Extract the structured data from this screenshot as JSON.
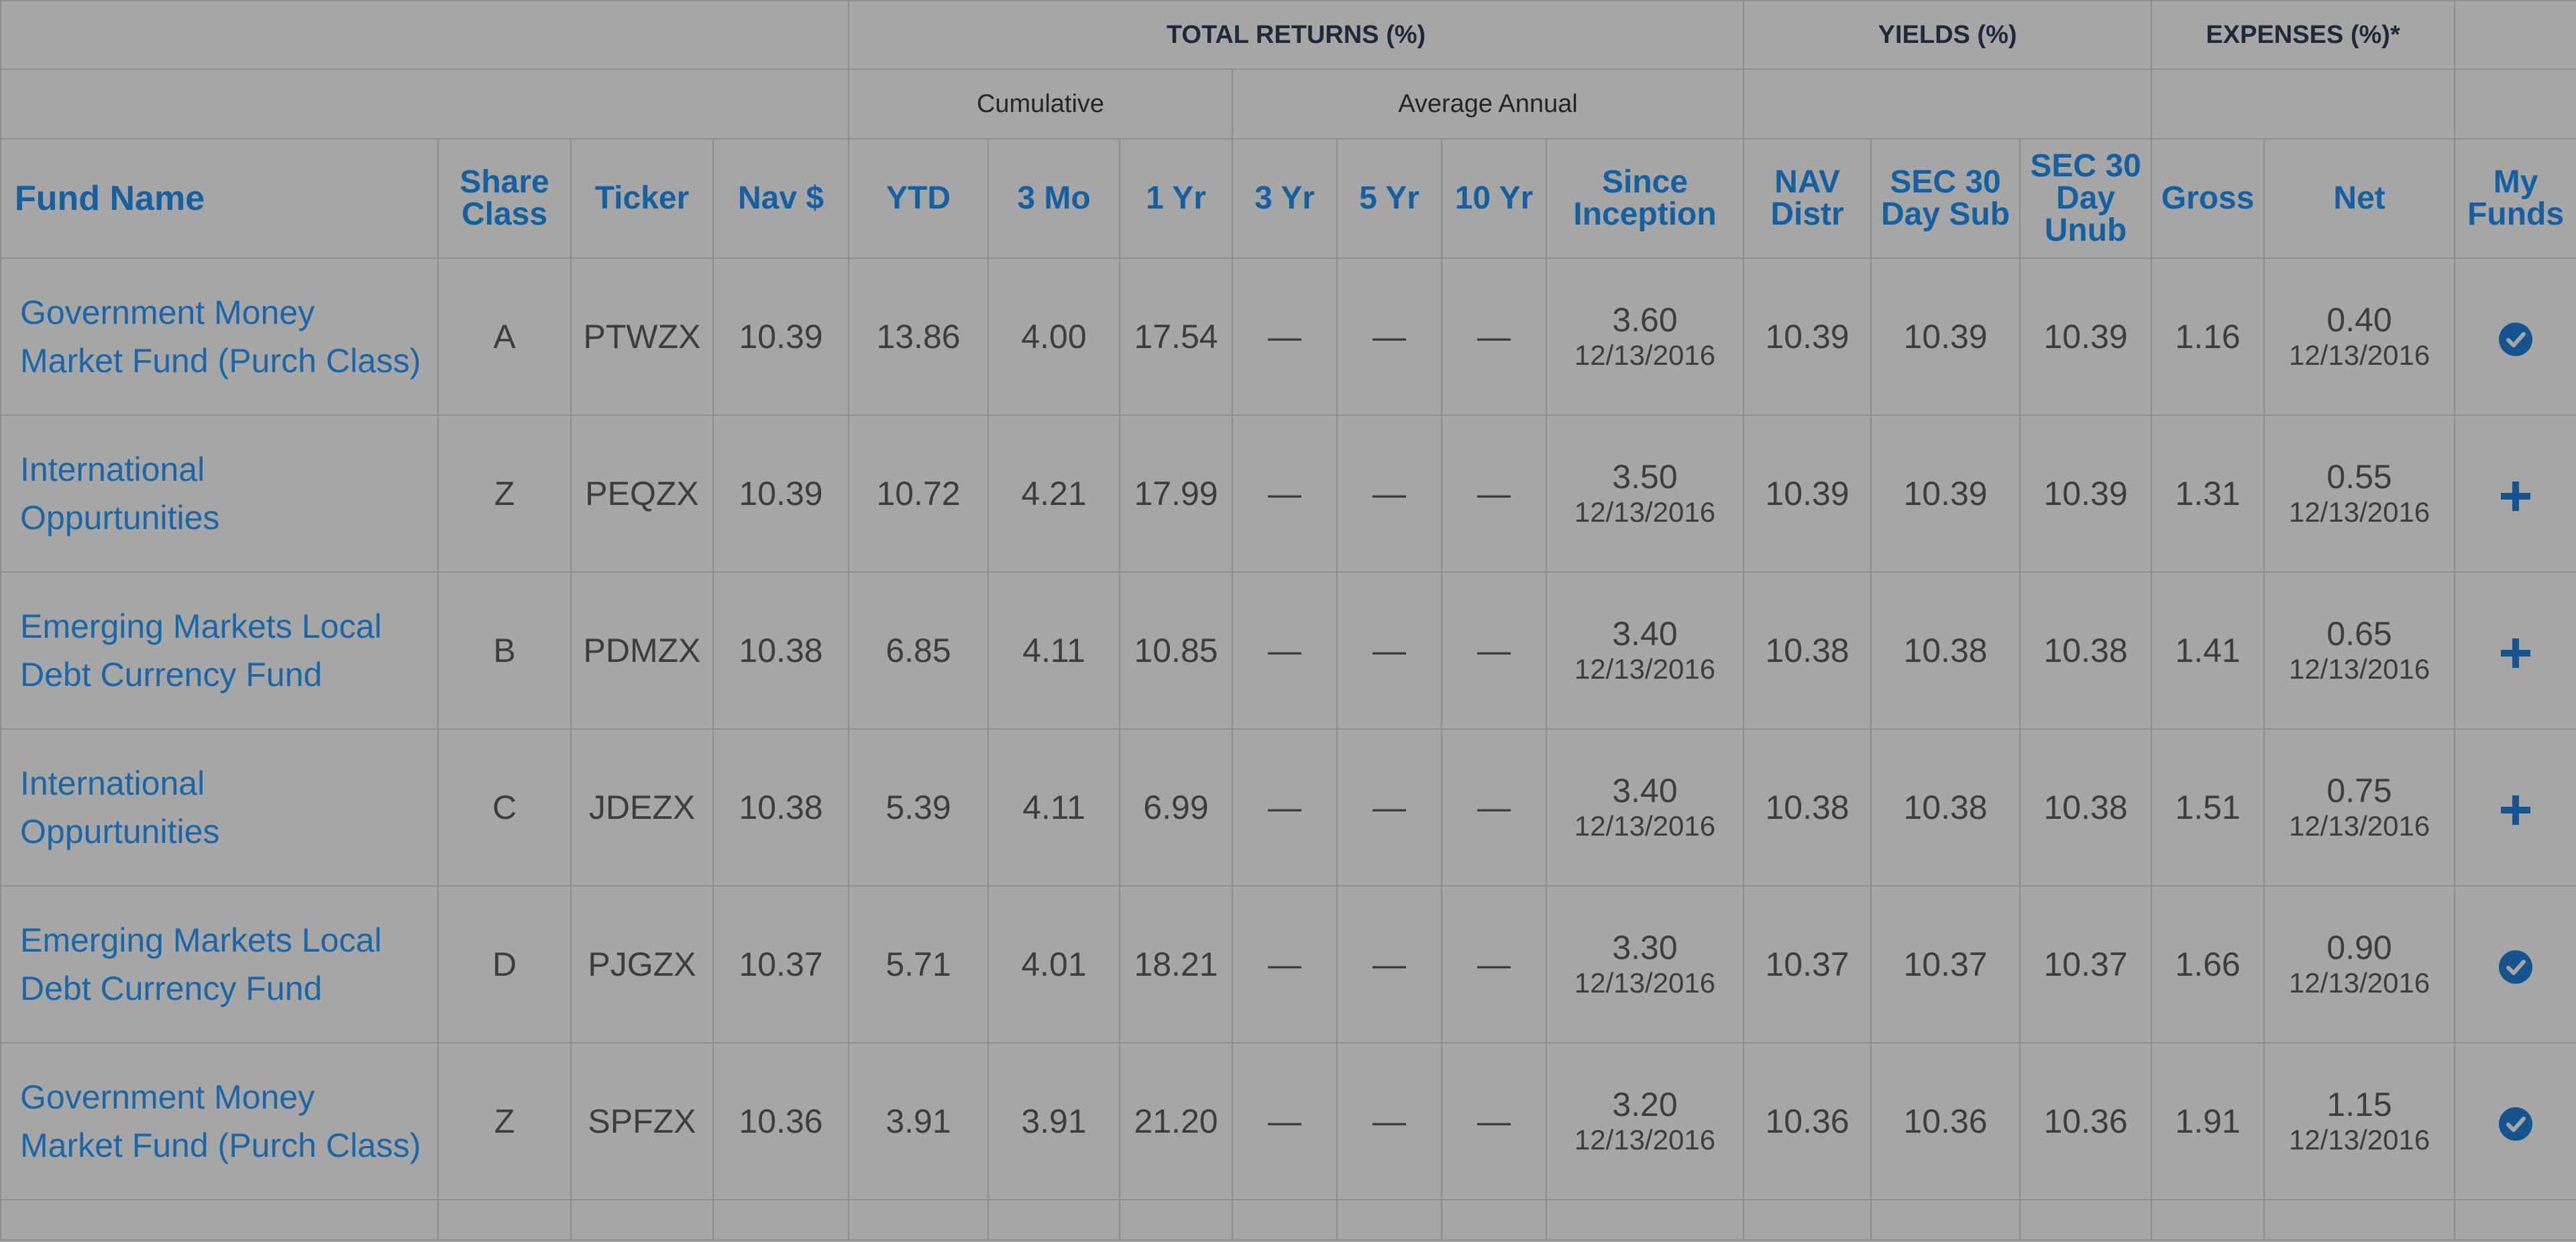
{
  "header": {
    "groups": {
      "total_returns": "TOTAL RETURNS (%)",
      "yields": "YIELDS (%)",
      "expenses": "EXPENSES (%)*"
    },
    "subgroups": {
      "cumulative": "Cumulative",
      "average_annual": "Average Annual"
    },
    "columns": {
      "fund_name": "Fund Name",
      "share_class_1": "Share",
      "share_class_2": "Class",
      "ticker": "Ticker",
      "nav": "Nav $",
      "ytd": "YTD",
      "three_mo": "3 Mo",
      "one_yr": "1 Yr",
      "three_yr": "3 Yr",
      "five_yr": "5 Yr",
      "ten_yr": "10 Yr",
      "since_inception_1": "Since",
      "since_inception_2": "Inception",
      "nav_distr_1": "NAV",
      "nav_distr_2": "Distr",
      "sec_sub_1": "SEC 30",
      "sec_sub_2": "Day Sub",
      "sec_unub_1": "SEC 30",
      "sec_unub_2": "Day",
      "sec_unub_3": "Unub",
      "gross": "Gross",
      "net": "Net",
      "my_funds_1": "My",
      "my_funds_2": "Funds"
    }
  },
  "rows": [
    {
      "name_line1": "Government Money",
      "name_line2": "Market Fund (Purch Class)",
      "share_class": "A",
      "ticker": "PTWZX",
      "nav": "10.39",
      "ytd": "13.86",
      "three_mo": "4.00",
      "one_yr": "17.54",
      "three_yr": "—",
      "five_yr": "—",
      "ten_yr": "—",
      "since_inception": "3.60",
      "inception_date": "12/13/2016",
      "nav_distr": "10.39",
      "sec_sub": "10.39",
      "sec_unub": "10.39",
      "gross": "1.16",
      "net": "0.40",
      "net_date": "12/13/2016",
      "my_funds_icon": "check-circle-icon"
    },
    {
      "name_line1": "International",
      "name_line2": "Oppurtunities",
      "share_class": "Z",
      "ticker": "PEQZX",
      "nav": "10.39",
      "ytd": "10.72",
      "three_mo": "4.21",
      "one_yr": "17.99",
      "three_yr": "—",
      "five_yr": "—",
      "ten_yr": "—",
      "since_inception": "3.50",
      "inception_date": "12/13/2016",
      "nav_distr": "10.39",
      "sec_sub": "10.39",
      "sec_unub": "10.39",
      "gross": "1.31",
      "net": "0.55",
      "net_date": "12/13/2016",
      "my_funds_icon": "plus-icon"
    },
    {
      "name_line1": "Emerging Markets Local",
      "name_line2": "Debt Currency Fund",
      "share_class": "B",
      "ticker": "PDMZX",
      "nav": "10.38",
      "ytd": "6.85",
      "three_mo": "4.11",
      "one_yr": "10.85",
      "three_yr": "—",
      "five_yr": "—",
      "ten_yr": "—",
      "since_inception": "3.40",
      "inception_date": "12/13/2016",
      "nav_distr": "10.38",
      "sec_sub": "10.38",
      "sec_unub": "10.38",
      "gross": "1.41",
      "net": "0.65",
      "net_date": "12/13/2016",
      "my_funds_icon": "plus-icon"
    },
    {
      "name_line1": "International",
      "name_line2": "Oppurtunities",
      "share_class": "C",
      "ticker": "JDEZX",
      "nav": "10.38",
      "ytd": "5.39",
      "three_mo": "4.11",
      "one_yr": "6.99",
      "three_yr": "—",
      "five_yr": "—",
      "ten_yr": "—",
      "since_inception": "3.40",
      "inception_date": "12/13/2016",
      "nav_distr": "10.38",
      "sec_sub": "10.38",
      "sec_unub": "10.38",
      "gross": "1.51",
      "net": "0.75",
      "net_date": "12/13/2016",
      "my_funds_icon": "plus-icon"
    },
    {
      "name_line1": "Emerging Markets Local",
      "name_line2": "Debt Currency Fund",
      "share_class": "D",
      "ticker": "PJGZX",
      "nav": "10.37",
      "ytd": "5.71",
      "three_mo": "4.01",
      "one_yr": "18.21",
      "three_yr": "—",
      "five_yr": "—",
      "ten_yr": "—",
      "since_inception": "3.30",
      "inception_date": "12/13/2016",
      "nav_distr": "10.37",
      "sec_sub": "10.37",
      "sec_unub": "10.37",
      "gross": "1.66",
      "net": "0.90",
      "net_date": "12/13/2016",
      "my_funds_icon": "check-circle-icon"
    },
    {
      "name_line1": "Government Money",
      "name_line2": "Market Fund (Purch Class)",
      "share_class": "Z",
      "ticker": "SPFZX",
      "nav": "10.36",
      "ytd": "3.91",
      "three_mo": "3.91",
      "one_yr": "21.20",
      "three_yr": "—",
      "five_yr": "—",
      "ten_yr": "—",
      "since_inception": "3.20",
      "inception_date": "12/13/2016",
      "nav_distr": "10.36",
      "sec_sub": "10.36",
      "sec_unub": "10.36",
      "gross": "1.91",
      "net": "1.15",
      "net_date": "12/13/2016",
      "my_funds_icon": "check-circle-icon"
    }
  ]
}
